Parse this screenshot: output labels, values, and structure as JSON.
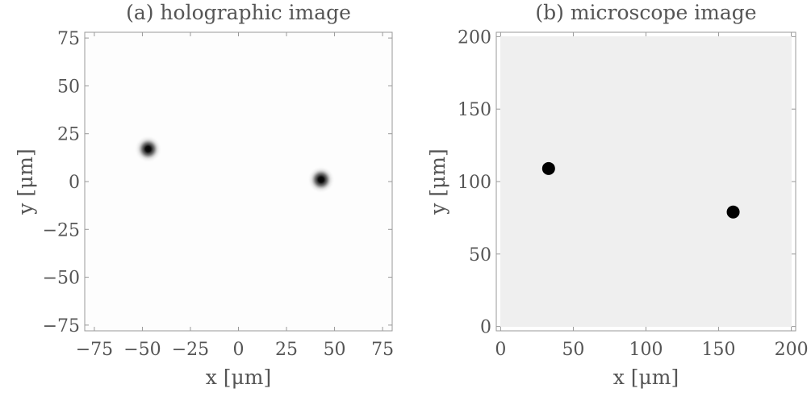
{
  "chart_data": [
    {
      "type": "heatmap",
      "title": "(a) holographic image",
      "xlabel": "x [μm]",
      "ylabel": "y [μm]",
      "xlim": [
        -80,
        80
      ],
      "ylim": [
        -78,
        78
      ],
      "xticks": [
        -75,
        -50,
        -25,
        0,
        25,
        50,
        75
      ],
      "yticks": [
        -75,
        -50,
        -25,
        0,
        25,
        50,
        75
      ],
      "tick_labels_x": [
        "−75",
        "−50",
        "−25",
        "0",
        "25",
        "50",
        "75"
      ],
      "tick_labels_y": [
        "−75",
        "−50",
        "−25",
        "0",
        "25",
        "50",
        "75"
      ],
      "background": "#fdfdfd",
      "grid": false,
      "spots": [
        {
          "x": -47,
          "y": 17,
          "style": "blurred"
        },
        {
          "x": 43,
          "y": 1,
          "style": "blurred"
        }
      ]
    },
    {
      "type": "heatmap",
      "title": "(b) microscope image",
      "xlabel": "x [μm]",
      "ylabel": "y [μm]",
      "xlim": [
        -3,
        203
      ],
      "ylim": [
        -3,
        203
      ],
      "xticks": [
        0,
        50,
        100,
        150,
        200
      ],
      "yticks": [
        0,
        50,
        100,
        150,
        200
      ],
      "tick_labels_x": [
        "0",
        "50",
        "100",
        "150",
        "200"
      ],
      "tick_labels_y": [
        "0",
        "50",
        "100",
        "150",
        "200"
      ],
      "background": "#efefef",
      "grid": false,
      "spots": [
        {
          "x": 33,
          "y": 109,
          "style": "sharp"
        },
        {
          "x": 160,
          "y": 79,
          "style": "sharp"
        }
      ]
    }
  ]
}
